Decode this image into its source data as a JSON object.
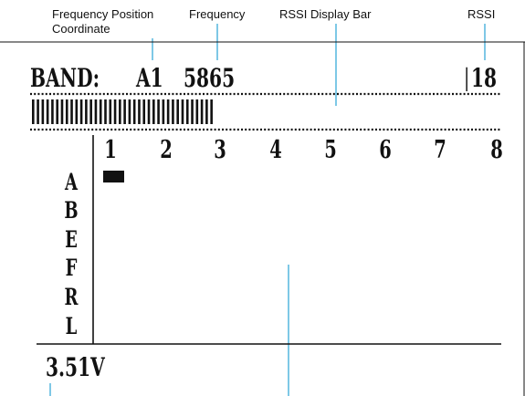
{
  "callouts": {
    "freq_position": "Frequency Position",
    "coordinate": "Coordinate",
    "frequency": "Frequency",
    "rssi_bar": "RSSI Display Bar",
    "rssi": "RSSI"
  },
  "display": {
    "band_label": "BAND:",
    "position": "A1",
    "frequency": "5865",
    "rssi": "18",
    "voltage": "3.51V"
  },
  "grid": {
    "columns": [
      "1",
      "2",
      "3",
      "4",
      "5",
      "6",
      "7",
      "8"
    ],
    "rows": [
      "A",
      "B",
      "E",
      "F",
      "R",
      "L"
    ],
    "selected_row": "A",
    "selected_column": "1"
  },
  "rssi_bar": {
    "segments": 38,
    "max_segments": 38
  },
  "colors": {
    "callout_line": "#29a3d6",
    "lcd_ink": "#111111"
  }
}
